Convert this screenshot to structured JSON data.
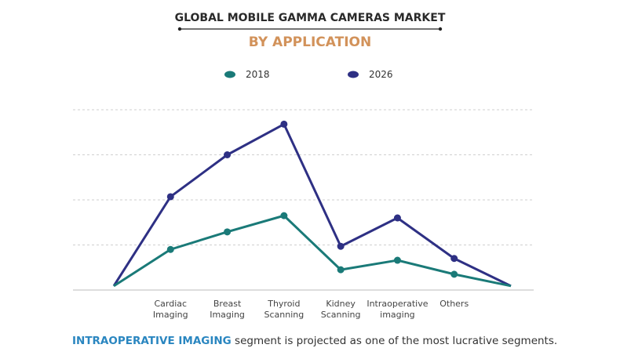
{
  "chart_data": {
    "type": "line",
    "title": "GLOBAL MOBILE GAMMA CAMERAS MARKET",
    "subtitle": "BY APPLICATION",
    "categories": [
      "",
      "Cardiac Imaging",
      "Breast Imaging",
      "Thyroid Scanning",
      "Kidney Scanning",
      "Intraoperative imaging",
      "Others",
      ""
    ],
    "series": [
      {
        "name": "2018",
        "color": "#1a7a78",
        "values": [
          0.09,
          0.9,
          1.29,
          1.65,
          0.45,
          0.66,
          0.35,
          0.09
        ]
      },
      {
        "name": "2026",
        "color": "#2e3084",
        "values": [
          0.09,
          2.07,
          3.0,
          3.68,
          0.97,
          1.6,
          0.7,
          0.09
        ]
      }
    ],
    "xlabel": "",
    "ylabel": "",
    "ylim": [
      0,
      4
    ],
    "y_tick_labels_shown": false,
    "grid": "horizontal dashed",
    "legend_placement": "top-center",
    "colors": {
      "title": "#2a2a2a",
      "subtitle": "#d2925a",
      "highlight": "#2a86c0"
    }
  },
  "footer": {
    "highlight": "INTRAOPERATIVE IMAGING",
    "text": " segment is projected as one of the most lucrative segments."
  }
}
